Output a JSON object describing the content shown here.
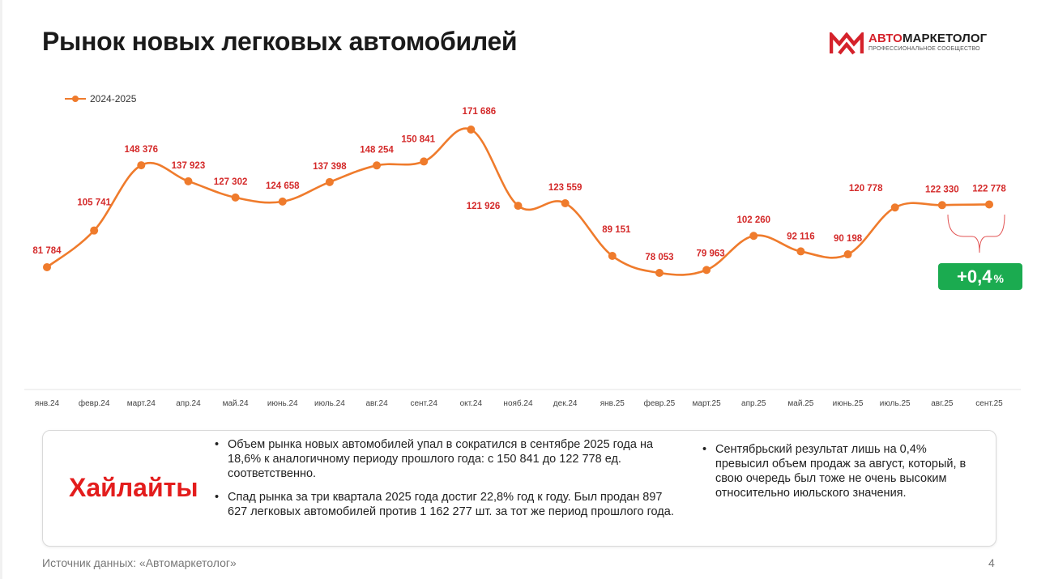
{
  "header": {
    "title": "Рынок новых легковых автомобилей"
  },
  "logo": {
    "name_accent": "АВТО",
    "name_rest": "МАРКЕТОЛОГ",
    "subtitle": "ПРОФЕССИОНАЛЬНОЕ СООБЩЕСТВО",
    "accent_color": "#d5222b"
  },
  "chart_data": {
    "type": "line",
    "series": [
      {
        "name": "2024-2025",
        "color": "#ef7b2c",
        "values": [
          81784,
          105741,
          148376,
          137923,
          127302,
          124658,
          137398,
          148254,
          150841,
          171686,
          121926,
          123559,
          89151,
          78053,
          79963,
          102260,
          92116,
          90198,
          120778,
          122330,
          122778
        ]
      }
    ],
    "categories": [
      "янв.24",
      "февр.24",
      "март.24",
      "апр.24",
      "май.24",
      "июнь.24",
      "июль.24",
      "авг.24",
      "сент.24",
      "окт.24",
      "нояб.24",
      "дек.24",
      "янв.25",
      "февр.25",
      "март.25",
      "апр.25",
      "май.25",
      "июнь.25",
      "июль.25",
      "авг.25",
      "сент.25"
    ],
    "data_labels": [
      "81 784",
      "105 741",
      "148 376",
      "137 923",
      "127 302",
      "124 658",
      "137 398",
      "148 254",
      "150 841",
      "171 686",
      "121 926",
      "123 559",
      "89 151",
      "78 053",
      "79 963",
      "102 260",
      "92 116",
      "90 198",
      "120 778",
      "122 330",
      "122 778"
    ],
    "label_color": "#d42a2a",
    "legend": "top-left",
    "grid": false,
    "annotation": {
      "value": "+0,4",
      "unit": "%",
      "color": "#1bab50"
    }
  },
  "highlights": {
    "title": "Хайлайты",
    "left": [
      "Объем рынка новых автомобилей упал в сократился в сентябре 2025 года на 18,6% к аналогичному периоду прошлого года: с 150 841 до 122 778 ед. соответственно.",
      "Спад рынка за три квартала 2025 года достиг 22,8% год к году. Был продан 897 627 легковых автомобилей против 1 162 277 шт. за тот же период прошлого года."
    ],
    "right": [
      "Сентябрьский результат лишь на 0,4% превысил объем продаж за август, который, в свою очередь был тоже не очень высоким относительно июльского значения."
    ]
  },
  "footer": {
    "source": "Источник данных: «Автомаркетолог»",
    "page": "4"
  }
}
